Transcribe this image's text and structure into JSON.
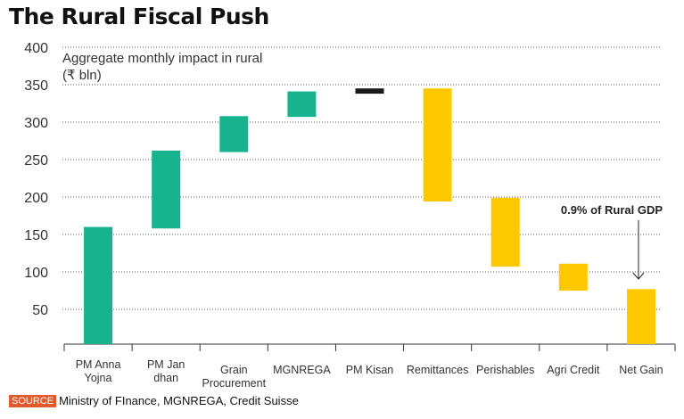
{
  "chart_data": {
    "type": "waterfall",
    "title": "The Rural Fiscal Push",
    "subtitle": [
      "Aggregate monthly impact in rural",
      "(₹ bln)"
    ],
    "ylim": [
      0,
      400
    ],
    "yticks": [
      50,
      100,
      150,
      200,
      250,
      300,
      350,
      400
    ],
    "grid": true,
    "categories": [
      [
        "PM Anna",
        "Yojna"
      ],
      [
        "PM Jan",
        "dhan"
      ],
      [
        "Grain",
        "Procurement"
      ],
      [
        "MGNREGA"
      ],
      [
        "PM Kisan"
      ],
      [
        "Remittances"
      ],
      [
        "Perishables"
      ],
      [
        "Agri Credit"
      ],
      [
        "Net Gain"
      ]
    ],
    "bars": [
      {
        "start": 0,
        "end": 160,
        "kind": "increase"
      },
      {
        "start": 158,
        "end": 262,
        "kind": "increase"
      },
      {
        "start": 260,
        "end": 308,
        "kind": "increase"
      },
      {
        "start": 307,
        "end": 341,
        "kind": "increase"
      },
      {
        "start": 338,
        "end": 345,
        "kind": "neutral"
      },
      {
        "start": 345,
        "end": 194,
        "kind": "decrease"
      },
      {
        "start": 199,
        "end": 107,
        "kind": "decrease"
      },
      {
        "start": 111,
        "end": 75,
        "kind": "decrease"
      },
      {
        "start": 0,
        "end": 77,
        "kind": "decrease"
      }
    ],
    "colors": {
      "increase": "#17b38f",
      "neutral": "#1a1a1a",
      "decrease": "#fdc800"
    },
    "annotation": {
      "text": "0.9% of Rural GDP",
      "target": "Net Gain"
    }
  },
  "source": {
    "label": "SOURCE",
    "text": "Ministry of FInance, MGNREGA, Credit Suisse"
  }
}
